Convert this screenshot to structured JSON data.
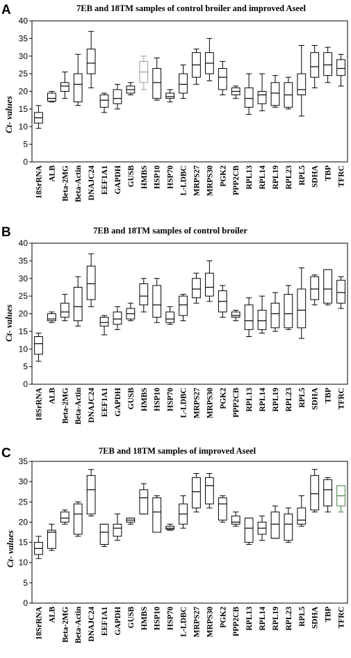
{
  "figure": {
    "colors": {
      "default": "#000000",
      "highlight_gray": "#9a9a9a",
      "highlight_green": "#3f7f3f",
      "axis": "#000000"
    }
  },
  "chart_data": [
    {
      "type": "boxplot",
      "panel_label": "A",
      "title": "7EB and 18TM samples of control broiler and improved Aseel",
      "ylabel": "Ct- values",
      "ylim": [
        0,
        40
      ],
      "yticks": [
        0,
        5,
        10,
        15,
        20,
        25,
        30,
        35,
        40
      ],
      "grid": false,
      "categories": [
        "18SrRNA",
        "ALB",
        "Beta-2MG",
        "Beta-Actin",
        "DNAJC24",
        "EEF1A1",
        "GAPDH",
        "GUSB",
        "HMBS",
        "HSP10",
        "HSP70",
        "L-LDBC",
        "MRPS27",
        "MRPS30",
        "PGK2",
        "PPP2CB",
        "RPL13",
        "RPL14",
        "RPL19",
        "RPL23",
        "RPL5",
        "SDHA",
        "TBP",
        "TFRC"
      ],
      "boxes": [
        {
          "min": 9.5,
          "q1": 11,
          "median": 12.5,
          "q3": 14,
          "max": 16
        },
        {
          "min": 17,
          "q1": 17.2,
          "median": 18,
          "q3": 19.5,
          "max": 20
        },
        {
          "min": 18,
          "q1": 20,
          "median": 21.5,
          "q3": 22.5,
          "max": 25.5
        },
        {
          "min": 16,
          "q1": 17,
          "median": 22,
          "q3": 25,
          "max": 30.5
        },
        {
          "min": 21,
          "q1": 25,
          "median": 28,
          "q3": 32,
          "max": 37
        },
        {
          "min": 14,
          "q1": 15.5,
          "median": 17.5,
          "q3": 19,
          "max": 19.5
        },
        {
          "min": 15,
          "q1": 16.5,
          "median": 18,
          "q3": 20.5,
          "max": 22
        },
        {
          "min": 19,
          "q1": 19.5,
          "median": 20.5,
          "q3": 21.5,
          "max": 22.5
        },
        {
          "min": 20.5,
          "q1": 22.5,
          "median": 25.5,
          "q3": 28.5,
          "max": 30
        },
        {
          "min": 17.5,
          "q1": 18,
          "median": 22.5,
          "q3": 26.5,
          "max": 29.5
        },
        {
          "min": 17,
          "q1": 18,
          "median": 18.5,
          "q3": 19.5,
          "max": 20.5
        },
        {
          "min": 18,
          "q1": 19.5,
          "median": 22,
          "q3": 25,
          "max": 27.5
        },
        {
          "min": 22,
          "q1": 24,
          "median": 27.5,
          "q3": 31,
          "max": 32
        },
        {
          "min": 23,
          "q1": 25,
          "median": 28,
          "q3": 31,
          "max": 35
        },
        {
          "min": 19,
          "q1": 20.5,
          "median": 24,
          "q3": 26.5,
          "max": 28.5
        },
        {
          "min": 18,
          "q1": 19,
          "median": 20,
          "q3": 21,
          "max": 21.5
        },
        {
          "min": 13.5,
          "q1": 15.5,
          "median": 18,
          "q3": 21,
          "max": 25
        },
        {
          "min": 14.5,
          "q1": 16.5,
          "median": 19,
          "q3": 20,
          "max": 25
        },
        {
          "min": 15.5,
          "q1": 16,
          "median": 19.5,
          "q3": 22.5,
          "max": 24.5
        },
        {
          "min": 15,
          "q1": 15.5,
          "median": 19,
          "q3": 22.5,
          "max": 24
        },
        {
          "min": 13,
          "q1": 19,
          "median": 20.5,
          "q3": 25,
          "max": 33
        },
        {
          "min": 21,
          "q1": 24,
          "median": 27,
          "q3": 31,
          "max": 33
        },
        {
          "min": 22.5,
          "q1": 24.5,
          "median": 27.5,
          "q3": 31,
          "max": 32.5
        },
        {
          "min": 21.5,
          "q1": 24.5,
          "median": 26.5,
          "q3": 29,
          "max": 30.5
        }
      ],
      "highlighted": {
        "8": "highlight_gray"
      }
    },
    {
      "type": "boxplot",
      "panel_label": "B",
      "title": "7EB and 18TM samples of control broiler",
      "ylabel": "Ct- values",
      "ylim": [
        0,
        40
      ],
      "yticks": [
        0,
        5,
        10,
        15,
        20,
        25,
        30,
        35,
        40
      ],
      "grid": false,
      "categories": [
        "18SrRNA",
        "ALB",
        "Beta-2MG",
        "Beta-Actin",
        "DNAJC24",
        "EEF1A1",
        "GAPDH",
        "GUSB",
        "HMBS",
        "HSP10",
        "HSP70",
        "L-LDBC",
        "MRPS27",
        "MRPS30",
        "PGK2",
        "PPP2CB",
        "RPL13",
        "RPL14",
        "RPL19",
        "RPL23",
        "RPL5",
        "SDHA",
        "TBP",
        "TFRC"
      ],
      "boxes": [
        {
          "min": 6.5,
          "q1": 8.5,
          "median": 11.5,
          "q3": 13.5,
          "max": 14.5
        },
        {
          "min": 17.5,
          "q1": 18,
          "median": 18.5,
          "q3": 20,
          "max": 20.5
        },
        {
          "min": 18,
          "q1": 19,
          "median": 20.5,
          "q3": 23,
          "max": 25.5
        },
        {
          "min": 16.5,
          "q1": 18,
          "median": 22,
          "q3": 27.5,
          "max": 30.5
        },
        {
          "min": 22,
          "q1": 24,
          "median": 28.5,
          "q3": 33.5,
          "max": 37
        },
        {
          "min": 14,
          "q1": 16.5,
          "median": 17.5,
          "q3": 19,
          "max": 19.5
        },
        {
          "min": 15.5,
          "q1": 17,
          "median": 18.5,
          "q3": 20.5,
          "max": 22
        },
        {
          "min": 18,
          "q1": 18.5,
          "median": 20,
          "q3": 21.5,
          "max": 23
        },
        {
          "min": 20.5,
          "q1": 22.5,
          "median": 25,
          "q3": 28.5,
          "max": 30
        },
        {
          "min": 17.5,
          "q1": 19,
          "median": 22.5,
          "q3": 28,
          "max": 30
        },
        {
          "min": 17,
          "q1": 17.5,
          "median": 18.5,
          "q3": 20.5,
          "max": 22
        },
        {
          "min": 18,
          "q1": 19.5,
          "median": 22.5,
          "q3": 25,
          "max": 25.5
        },
        {
          "min": 23,
          "q1": 24.5,
          "median": 27,
          "q3": 30,
          "max": 31.5
        },
        {
          "min": 23.5,
          "q1": 25,
          "median": 27.5,
          "q3": 31.5,
          "max": 35
        },
        {
          "min": 19,
          "q1": 20.5,
          "median": 23.5,
          "q3": 26.5,
          "max": 28
        },
        {
          "min": 18,
          "q1": 19,
          "median": 19.5,
          "q3": 20.5,
          "max": 21
        },
        {
          "min": 13.5,
          "q1": 15.5,
          "median": 18,
          "q3": 22.5,
          "max": 24.5
        },
        {
          "min": 14.5,
          "q1": 15.5,
          "median": 18,
          "q3": 21,
          "max": 25
        },
        {
          "min": 15,
          "q1": 16,
          "median": 20,
          "q3": 23,
          "max": 26
        },
        {
          "min": 15.5,
          "q1": 16,
          "median": 20,
          "q3": 25.5,
          "max": 28
        },
        {
          "min": 13,
          "q1": 16,
          "median": 21,
          "q3": 27,
          "max": 33
        },
        {
          "min": 22.5,
          "q1": 24,
          "median": 27,
          "q3": 30.5,
          "max": 31
        },
        {
          "min": 22.5,
          "q1": 23,
          "median": 27,
          "q3": 32.5,
          "max": 32.5
        },
        {
          "min": 21.5,
          "q1": 23,
          "median": 26,
          "q3": 29.5,
          "max": 30.5
        }
      ],
      "highlighted": {}
    },
    {
      "type": "boxplot",
      "panel_label": "C",
      "title": "7EB and 18TM samples of improved Aseel",
      "ylabel": "Ct- values",
      "ylim": [
        0,
        35
      ],
      "yticks": [
        0,
        5,
        10,
        15,
        20,
        25,
        30,
        35
      ],
      "grid": false,
      "categories": [
        "18SrRNA",
        "ALB",
        "Beta-2MG",
        "Beta-Actin",
        "DNAJC24",
        "EEF1A1",
        "GAPDH",
        "GUSB",
        "HMBS",
        "HSP10",
        "HSP70",
        "L-LDBC",
        "MRPS27",
        "MRPS30",
        "PGK2",
        "PPP2CB",
        "RPL13",
        "RPL14",
        "RPL19",
        "RPL23",
        "RPL5",
        "SDHA",
        "TBP",
        "TFRC"
      ],
      "boxes": [
        {
          "min": 11,
          "q1": 12,
          "median": 13.5,
          "q3": 15,
          "max": 16.5
        },
        {
          "min": 13,
          "q1": 13.5,
          "median": 17.5,
          "q3": 18,
          "max": 19.5
        },
        {
          "min": 19.5,
          "q1": 20,
          "median": 21,
          "q3": 22.5,
          "max": 23
        },
        {
          "min": 16.5,
          "q1": 17,
          "median": 22,
          "q3": 24.5,
          "max": 25
        },
        {
          "min": 21.5,
          "q1": 22,
          "median": 28,
          "q3": 31.5,
          "max": 33
        },
        {
          "min": 14,
          "q1": 14.5,
          "median": 17.5,
          "q3": 19.5,
          "max": 19.5
        },
        {
          "min": 15.5,
          "q1": 16.5,
          "median": 18.5,
          "q3": 19.5,
          "max": 22
        },
        {
          "min": 19.5,
          "q1": 20,
          "median": 20.5,
          "q3": 21,
          "max": 21
        },
        {
          "min": 22,
          "q1": 22,
          "median": 26,
          "q3": 28,
          "max": 29.5
        },
        {
          "min": 17.5,
          "q1": 17.5,
          "median": 22.5,
          "q3": 26,
          "max": 26.5
        },
        {
          "min": 18,
          "q1": 18.2,
          "median": 18.5,
          "q3": 19,
          "max": 19.5
        },
        {
          "min": 18.5,
          "q1": 19.5,
          "median": 22,
          "q3": 24.5,
          "max": 26.5
        },
        {
          "min": 22.5,
          "q1": 23.5,
          "median": 27.5,
          "q3": 31,
          "max": 32
        },
        {
          "min": 23.5,
          "q1": 24.5,
          "median": 29,
          "q3": 31,
          "max": 32
        },
        {
          "min": 20,
          "q1": 20.5,
          "median": 24.5,
          "q3": 26,
          "max": 26.5
        },
        {
          "min": 19,
          "q1": 19.5,
          "median": 20,
          "q3": 21.5,
          "max": 22.5
        },
        {
          "min": 14.5,
          "q1": 15,
          "median": 18.5,
          "q3": 21,
          "max": 21
        },
        {
          "min": 15.5,
          "q1": 17,
          "median": 18.5,
          "q3": 20,
          "max": 21.5
        },
        {
          "min": 16,
          "q1": 16,
          "median": 19.5,
          "q3": 22.5,
          "max": 24
        },
        {
          "min": 15,
          "q1": 15.5,
          "median": 19.5,
          "q3": 22,
          "max": 23.5
        },
        {
          "min": 19,
          "q1": 19.5,
          "median": 20.5,
          "q3": 23.5,
          "max": 26.5
        },
        {
          "min": 22.5,
          "q1": 23,
          "median": 27,
          "q3": 31.5,
          "max": 33
        },
        {
          "min": 22.5,
          "q1": 24,
          "median": 28,
          "q3": 30.5,
          "max": 31
        },
        {
          "min": 22.5,
          "q1": 24,
          "median": 26.5,
          "q3": 29,
          "max": 29
        }
      ],
      "highlighted": {
        "23": "highlight_green"
      }
    }
  ]
}
